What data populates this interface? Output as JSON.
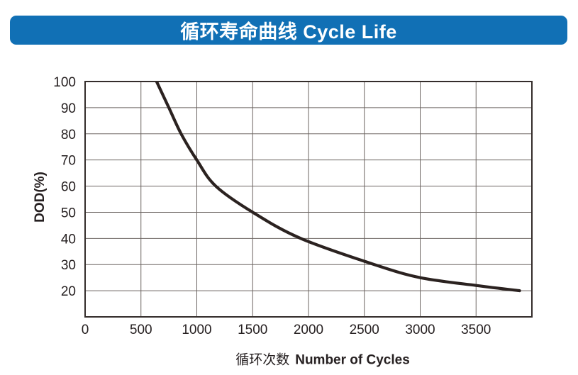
{
  "banner": {
    "title": "循环寿命曲线 Cycle Life",
    "bg_color": "#1170b5",
    "text_color": "#ffffff"
  },
  "chart_data": {
    "type": "line",
    "title": "循环寿命曲线 Cycle Life",
    "xlabel": "循环次数 Number of Cycles",
    "xlabel_cn": "循环次数",
    "xlabel_en": "Number of Cycles",
    "ylabel": "DOD(%)",
    "xlim": [
      0,
      4000
    ],
    "ylim": [
      10,
      100
    ],
    "x_ticks": [
      0,
      500,
      1000,
      1500,
      2000,
      2500,
      3000,
      3500
    ],
    "y_ticks": [
      20,
      30,
      40,
      50,
      60,
      70,
      80,
      90,
      100
    ],
    "x_grid_step": 500,
    "y_grid_step": 10,
    "grid": true,
    "legend": false,
    "series": [
      {
        "name": "cycle-life-curve",
        "x": [
          640,
          750,
          860,
          1000,
          1170,
          1500,
          1930,
          2590,
          3000,
          3500,
          3890
        ],
        "y": [
          100,
          90,
          80,
          70,
          60,
          50,
          40,
          30,
          25,
          22,
          20
        ],
        "color": "#2b2220",
        "stroke_width": 4.2
      }
    ],
    "colors": {
      "grid": "#6b6461",
      "border": "#342d2b",
      "tick_text": "#262021"
    }
  }
}
